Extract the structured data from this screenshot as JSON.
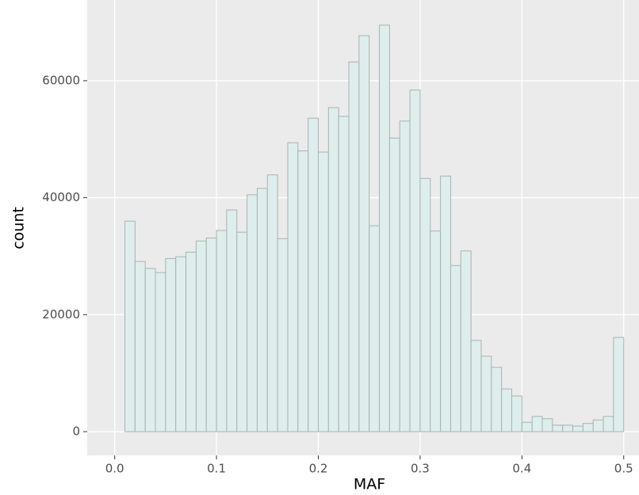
{
  "chart_data": {
    "type": "histogram",
    "x_label": "MAF",
    "y_label": "count",
    "bins": [
      0,
      0.01,
      0.02,
      0.03,
      0.04,
      0.05,
      0.06,
      0.07,
      0.08,
      0.09,
      0.1,
      0.11,
      0.12,
      0.13,
      0.14,
      0.15,
      0.16,
      0.17,
      0.18,
      0.19,
      0.2,
      0.21,
      0.22,
      0.23,
      0.24,
      0.25,
      0.26,
      0.27,
      0.28,
      0.29,
      0.3,
      0.31,
      0.32,
      0.33,
      0.34,
      0.35,
      0.36,
      0.37,
      0.38,
      0.39,
      0.4,
      0.41,
      0.42,
      0.43,
      0.44,
      0.45,
      0.46,
      0.47,
      0.48,
      0.49,
      0.5
    ],
    "counts": [
      0,
      36000,
      29100,
      27900,
      27200,
      29600,
      29900,
      30700,
      32600,
      33100,
      34400,
      37900,
      34100,
      40500,
      41600,
      43900,
      33000,
      49400,
      48000,
      53600,
      47800,
      55400,
      53900,
      63200,
      67700,
      35200,
      69500,
      50200,
      53100,
      58400,
      43300,
      34300,
      43700,
      28400,
      30900,
      15600,
      12900,
      11000,
      7300,
      6100,
      1600,
      2600,
      2200,
      1100,
      1100,
      950,
      1400,
      2000,
      2600,
      16100
    ],
    "color": "#deeeec",
    "edge_color": "#a9b2b1",
    "xlim": [
      -0.027,
      0.515
    ],
    "xticks": [
      {
        "value": 0,
        "label": "0.0"
      },
      0.1,
      0.2,
      0.3,
      0.4,
      0.5
    ],
    "ylim": [
      -4060,
      73800
    ],
    "yticks": [
      0,
      20000,
      40000,
      60000
    ],
    "grid": true
  }
}
